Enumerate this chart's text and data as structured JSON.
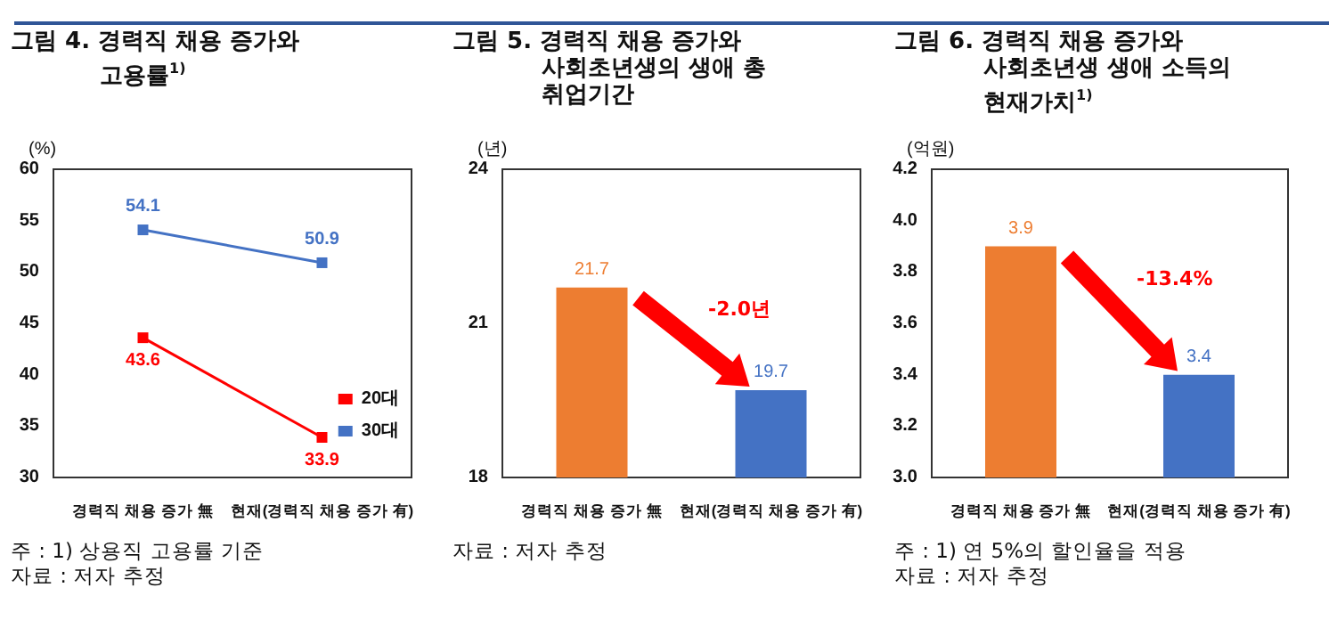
{
  "chart_data": [
    {
      "type": "line",
      "title": "그림 4. 경력직 채용 증가와 고용률$^{1)}$",
      "ylabel": "(%)",
      "categories": [
        "경력직 채용 증가 無",
        "현재(경력직 채용 증가 有)"
      ],
      "series": [
        {
          "name": "20대",
          "color": "#ff0000",
          "values": [
            43.6,
            33.9
          ]
        },
        {
          "name": "30대",
          "color": "#4472c4",
          "values": [
            54.1,
            50.9
          ]
        }
      ],
      "ylim": [
        30,
        60
      ],
      "yticks": [
        30,
        35,
        40,
        45,
        50,
        55,
        60
      ],
      "grid": false,
      "legend": "bottom right",
      "marker": "square",
      "data_labels": true,
      "annotations": [
        "주 : 1) 상용직 고용률 기준",
        "자료 : 저자 추정"
      ]
    },
    {
      "type": "bar",
      "title": "그림 5. 경력직 채용 증가와 사회초년생의 생애 총 취업기간",
      "ylabel": "(년)",
      "categories": [
        "경력직 채용 증가 無",
        "현재(경력직 채용 증가 有)"
      ],
      "values": [
        21.7,
        19.7
      ],
      "colors": [
        "#ed7d31",
        "#4472c4"
      ],
      "ylim": [
        18,
        24
      ],
      "yticks": [
        18,
        21,
        24
      ],
      "grid": false,
      "data_labels": true,
      "annotations": [
        "-2.0년",
        "자료 : 저자 추정"
      ]
    },
    {
      "type": "bar",
      "title": "그림 6. 경력직 채용 증가와 사회초년생 생애 소득의 현재가치$^{1)}$",
      "ylabel": "(억원)",
      "categories": [
        "경력직 채용 증가 無",
        "현재(경력직 채용 증가 有)"
      ],
      "values": [
        3.9,
        3.4
      ],
      "colors": [
        "#ed7d31",
        "#4472c4"
      ],
      "ylim": [
        3.0,
        4.2
      ],
      "yticks": [
        {
          "value": 3.0,
          "label": "3.0"
        },
        3.2,
        3.4,
        3.6,
        3.8,
        {
          "value": 4.0,
          "label": "4.0"
        },
        4.2
      ],
      "grid": false,
      "data_labels": true,
      "annotations": [
        "-13.4%",
        "주 : 1) 연 5%의 할인율을 적용",
        "자료 : 저자 추정"
      ]
    }
  ]
}
